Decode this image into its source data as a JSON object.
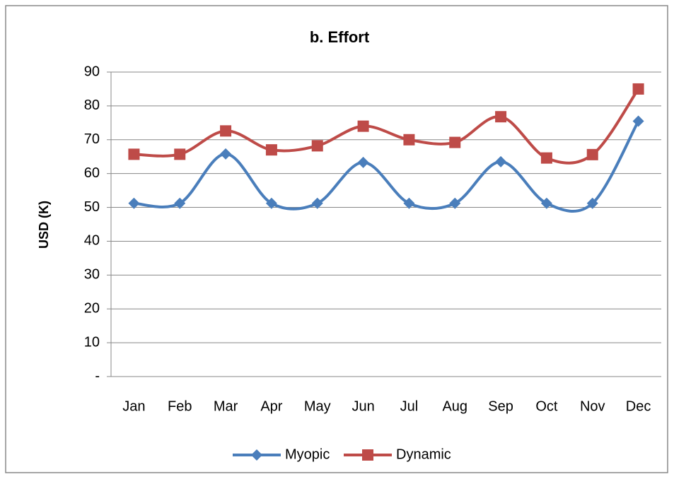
{
  "chart_data": {
    "type": "line",
    "title": "b. Effort",
    "y_label": "USD (K)",
    "categories": [
      "Jan",
      "Feb",
      "Mar",
      "Apr",
      "May",
      "Jun",
      "Jul",
      "Aug",
      "Sep",
      "Oct",
      "Nov",
      "Dec"
    ],
    "series": [
      {
        "name": "Myopic",
        "color": "#4a7ebb",
        "marker": "diamond",
        "values": [
          51.2,
          51.2,
          65.8,
          51.2,
          51.2,
          63.3,
          51.2,
          51.2,
          63.5,
          51.2,
          51.2,
          75.5
        ]
      },
      {
        "name": "Dynamic",
        "color": "#be4b48",
        "marker": "square",
        "values": [
          65.7,
          65.7,
          72.6,
          67,
          68.2,
          74,
          70,
          69.2,
          76.8,
          64.6,
          65.6,
          85
        ]
      }
    ],
    "ylim": [
      0,
      90
    ],
    "yticks": [
      {
        "value": 0,
        "label": "-"
      },
      10,
      20,
      30,
      40,
      50,
      60,
      70,
      80,
      90
    ],
    "grid": true,
    "smooth": true,
    "legend": "bottom"
  }
}
